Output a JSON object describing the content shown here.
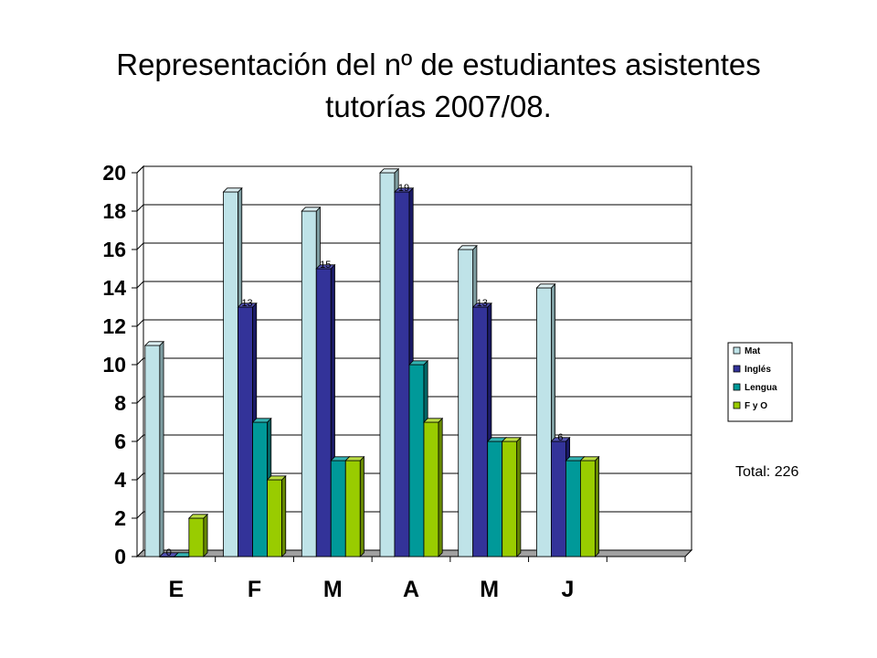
{
  "title_line1": "Representación del nº de estudiantes asistentes",
  "title_line2": "tutorías 2007/08.",
  "total_text": "Total: 226",
  "chart_data": {
    "type": "bar",
    "categories": [
      "E",
      "F",
      "M",
      "A",
      "M",
      "J"
    ],
    "series": [
      {
        "name": "Mat",
        "values": [
          11,
          19,
          18,
          20,
          16,
          14
        ],
        "color": "#BFE3E8",
        "shade": "#7E9DA1",
        "top": "#DCEFF2"
      },
      {
        "name": "Inglés",
        "values": [
          0,
          13,
          15,
          19,
          13,
          6
        ],
        "color": "#333399",
        "shade": "#1A1A66",
        "top": "#5252B3"
      },
      {
        "name": "Lengua",
        "values": [
          0,
          7,
          5,
          10,
          6,
          5
        ],
        "color": "#009999",
        "shade": "#006666",
        "top": "#33B3B3"
      },
      {
        "name": "F y O",
        "values": [
          2,
          4,
          5,
          7,
          6,
          5
        ],
        "color": "#99CC00",
        "shade": "#668800",
        "top": "#BBDD44"
      }
    ],
    "data_labels": [
      {
        "category_index": 0,
        "series_index": 1,
        "text": "0"
      },
      {
        "category_index": 1,
        "series_index": 1,
        "text": "13"
      },
      {
        "category_index": 2,
        "series_index": 1,
        "text": "15"
      },
      {
        "category_index": 3,
        "series_index": 1,
        "text": "19"
      },
      {
        "category_index": 4,
        "series_index": 1,
        "text": "13"
      },
      {
        "category_index": 5,
        "series_index": 1,
        "text": "6"
      }
    ],
    "y_ticks": [
      0,
      2,
      4,
      6,
      8,
      10,
      12,
      14,
      16,
      18,
      20
    ],
    "ylim": [
      0,
      20
    ],
    "grid": true,
    "legend_position": "right",
    "xlabel": "",
    "ylabel": ""
  }
}
